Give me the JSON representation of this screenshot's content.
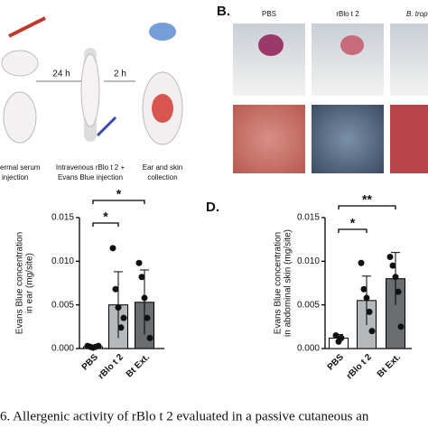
{
  "figure": {
    "panel_a": {
      "steps": [
        "24 h",
        "2 h"
      ],
      "captions": [
        [
          "ermal serum",
          "injection"
        ],
        [
          "Intravenous rBlo t 2 +",
          "Evans Blue injection"
        ],
        [
          "Ear and skin",
          "collection"
        ]
      ]
    },
    "panel_b": {
      "label": "B.",
      "columns": [
        "PBS",
        "rBlo t 2",
        "B. trop"
      ]
    }
  },
  "chart_data": [
    {
      "type": "bar",
      "y_label": [
        "Evans Blue concentration",
        "in ear (mg/site)"
      ],
      "categories": [
        "PBS",
        "rBlo t 2",
        "Bt Ext."
      ],
      "values": [
        0.0002,
        0.005,
        0.0053
      ],
      "errors": [
        0.0001,
        0.0038,
        0.0037
      ],
      "points": [
        [
          0.0003,
          0.0002,
          0.0001,
          0.0002,
          0.0003
        ],
        [
          0.0115,
          0.0068,
          0.0047,
          0.0024,
          0.0035
        ],
        [
          0.0098,
          0.0082,
          0.0058,
          0.0035,
          0.0012
        ]
      ],
      "colors": [
        "#ffffff",
        "#b5b9bc",
        "#6a6d70"
      ],
      "ylim": [
        0,
        0.015
      ],
      "yticks": [
        {
          "value": 0,
          "label": "0.000"
        },
        {
          "value": 0.005,
          "label": "0.005"
        },
        {
          "value": 0.01,
          "label": "0.010"
        },
        {
          "value": 0.015,
          "label": "0.015"
        }
      ],
      "brackets": [
        {
          "label": "*",
          "from": 0,
          "to": 2
        },
        {
          "label": "*",
          "from": 0,
          "to": 1
        }
      ]
    },
    {
      "type": "bar",
      "panel_label": "D.",
      "y_label": [
        "Evans Blue concentration",
        "in abdominal skin (mg/site)"
      ],
      "categories": [
        "PBS",
        "rBlo t 2",
        "Bt Ext."
      ],
      "values": [
        0.0012,
        0.0055,
        0.008
      ],
      "errors": [
        0.0004,
        0.0028,
        0.003
      ],
      "points": [
        [
          0.0015,
          0.0008,
          0.0012
        ],
        [
          0.0098,
          0.0068,
          0.0058,
          0.0042,
          0.002
        ],
        [
          0.0105,
          0.0095,
          0.0082,
          0.0065,
          0.0025
        ]
      ],
      "colors": [
        "#ffffff",
        "#b5b9bc",
        "#6a6d70"
      ],
      "ylim": [
        0,
        0.015
      ],
      "yticks": [
        {
          "value": 0,
          "label": "0.000"
        },
        {
          "value": 0.005,
          "label": "0.005"
        },
        {
          "value": 0.01,
          "label": "0.010"
        },
        {
          "value": 0.015,
          "label": "0.015"
        }
      ],
      "brackets": [
        {
          "label": "**",
          "from": 0,
          "to": 2
        },
        {
          "label": "*",
          "from": 0,
          "to": 1
        }
      ]
    }
  ],
  "caption": "6. Allergenic activity of rBlo t 2 evaluated in a passive cutaneous an"
}
